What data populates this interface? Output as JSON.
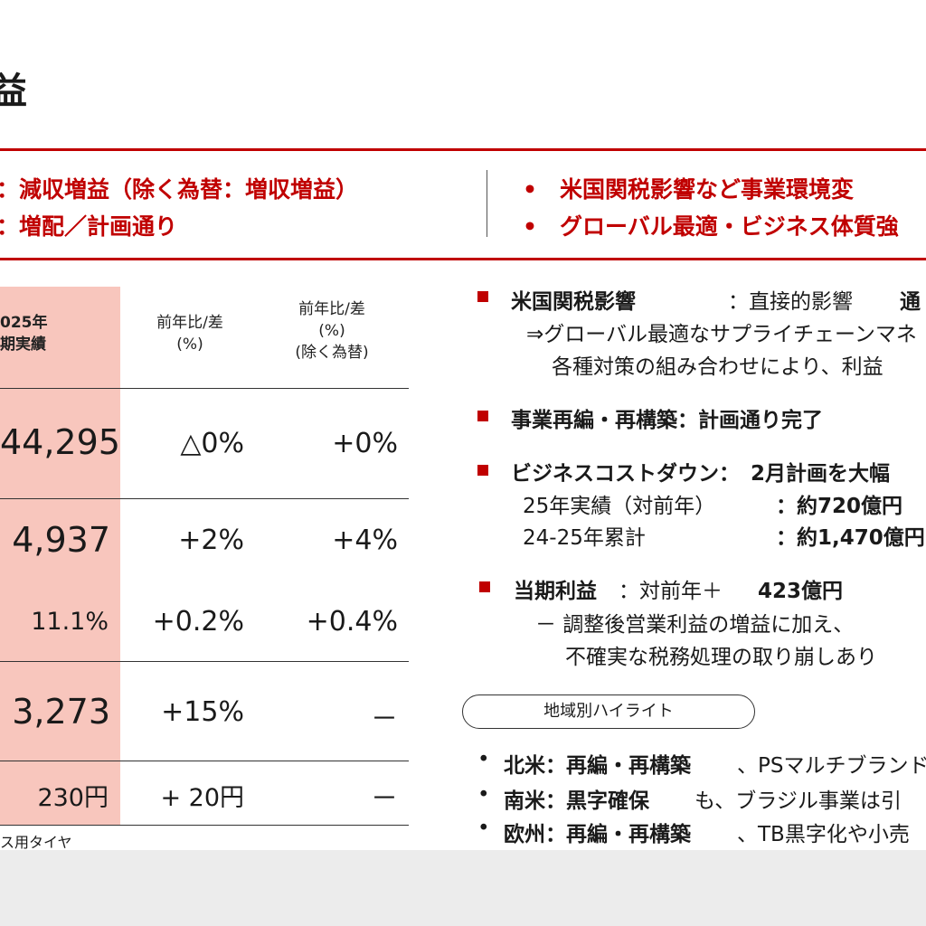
{
  "title": "益",
  "summary": {
    "left_lines": [
      "：減収増益（除く為替：増収増益）",
      "：増配／計画通り"
    ],
    "right_lines": [
      "•　米国関税影響など事業環境変",
      "•　グローバル最適・ビジネス体質強"
    ]
  },
  "table": {
    "col0_header": [
      "025年",
      "期実績"
    ],
    "col1_header": [
      "前年比/差",
      "(%)"
    ],
    "col2_header": [
      "前年比/差",
      "(%)",
      "(除く為替)"
    ],
    "rows": [
      {
        "value": "44,295",
        "yoy": "△0%",
        "yoy_ex_fx": "+0%"
      },
      {
        "value": "4,937",
        "yoy": "+2%",
        "yoy_ex_fx": "+4%"
      },
      {
        "value": "11.1%",
        "yoy": "+0.2%",
        "yoy_ex_fx": "+0.4%"
      },
      {
        "value": "3,273",
        "yoy": "+15%",
        "yoy_ex_fx": "－"
      },
      {
        "value": "230円",
        "yoy": "+ 20円",
        "yoy_ex_fx": "－"
      }
    ],
    "footnote": "ス用タイヤ"
  },
  "right": {
    "item1_label": "米国関税影響",
    "item1_rest": "：直接的影響",
    "item1_tail": "通",
    "item1_sub1": "⇒グローバル最適なサプライチェーンマネ",
    "item1_sub2": "各種対策の組み合わせにより、利益",
    "item2": "事業再編・再構築：計画通り完了",
    "item3_label": "ビジネスコストダウン：",
    "item3_value": "2月計画を大幅",
    "item3_sub1_label": "25年実績（対前年）",
    "item3_sub1_value": "：約720億円",
    "item3_sub2_label": "24-25年累計",
    "item3_sub2_value": "：約1,470億円",
    "item4_label": "当期利益",
    "item4_mid": "：対前年＋",
    "item4_value": "423億円",
    "item4_sub1": "－ 調整後営業利益の増益に加え、",
    "item4_sub2": "不確実な税務処理の取り崩しあり",
    "regional_pill": "地域別ハイライト",
    "regions": [
      {
        "name": "北米：再編・再構築",
        "rest": "、PSマルチブランド"
      },
      {
        "name": "南米：黒字確保",
        "rest": "も、ブラジル事業は引"
      },
      {
        "name": "欧州：再編・再構築",
        "rest": "、TB黒字化や小売"
      }
    ]
  },
  "colors": {
    "accent": "#c00000",
    "highlight": "#f8c6bd",
    "footer": "#ececec"
  }
}
